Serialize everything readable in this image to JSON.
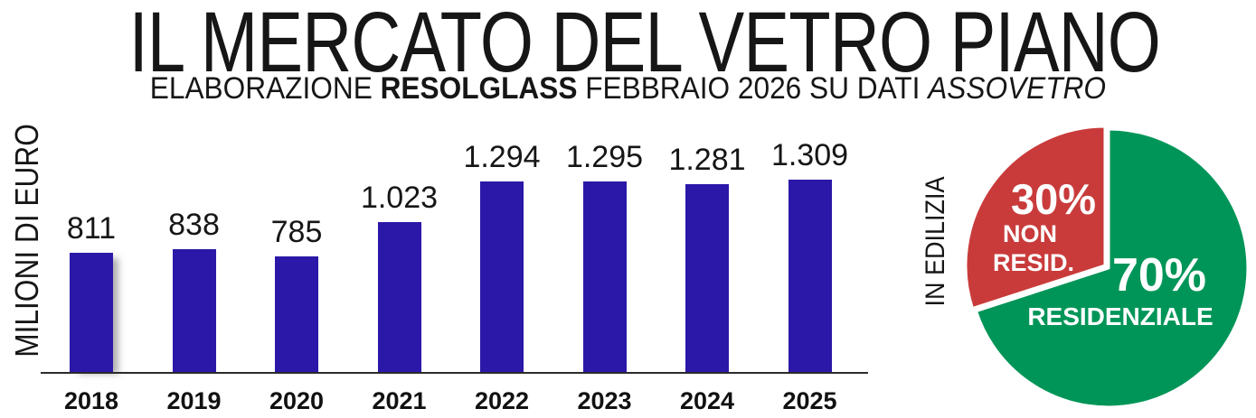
{
  "header": {
    "title": "IL MERCATO DEL VETRO PIANO",
    "subtitle": {
      "part1": "ELABORAZIONE ",
      "brand": "RESOLGLASS",
      "part2": " FEBBRAIO 2026 SU DATI ",
      "source": "ASSOVETRO"
    }
  },
  "colors": {
    "bar_blue": "#2B18A8",
    "pie_red": "#C93B3B",
    "pie_green": "#009558",
    "axis": "#2B2B2B",
    "text": "#161616"
  },
  "chart_data": [
    {
      "type": "bar",
      "title": "",
      "xlabel": "",
      "ylabel": "MILIONI DI EURO",
      "categories": [
        "2018",
        "2019",
        "2020",
        "2021",
        "2022",
        "2023",
        "2024",
        "2025"
      ],
      "values": [
        811,
        838,
        785,
        1023,
        1294,
        1295,
        1281,
        1309
      ],
      "value_labels": [
        "811",
        "838",
        "785",
        "1.023",
        "1.294",
        "1.295",
        "1.281",
        "1.309"
      ],
      "ylim": [
        0,
        1350
      ],
      "grid": false,
      "legend": false,
      "bar_color": "#2B18A8"
    },
    {
      "type": "pie",
      "side_label": "IN EDILIZIA",
      "slices": [
        {
          "label": "NON RESID.",
          "pct": 30,
          "pct_label": "30%",
          "label_line1": "NON",
          "label_line2": "RESID.",
          "color": "#C93B3B"
        },
        {
          "label": "RESIDENZIALE",
          "pct": 70,
          "pct_label": "70%",
          "color": "#009558"
        }
      ]
    }
  ]
}
